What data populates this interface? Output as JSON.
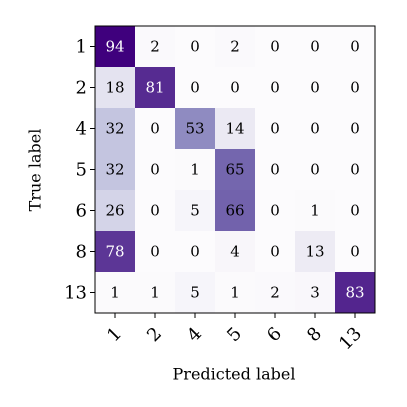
{
  "chart_data": {
    "type": "heatmap",
    "xlabel": "Predicted label",
    "ylabel": "True label",
    "x_categories": [
      "1",
      "2",
      "4",
      "5",
      "6",
      "8",
      "13"
    ],
    "y_categories": [
      "1",
      "2",
      "4",
      "5",
      "6",
      "8",
      "13"
    ],
    "values": [
      [
        94,
        2,
        0,
        2,
        0,
        0,
        0
      ],
      [
        18,
        81,
        0,
        0,
        0,
        0,
        0
      ],
      [
        32,
        0,
        53,
        14,
        0,
        0,
        0
      ],
      [
        32,
        0,
        1,
        65,
        0,
        0,
        0
      ],
      [
        26,
        0,
        5,
        66,
        0,
        1,
        0
      ],
      [
        78,
        0,
        0,
        4,
        0,
        13,
        0
      ],
      [
        1,
        1,
        5,
        1,
        2,
        3,
        83
      ]
    ]
  }
}
